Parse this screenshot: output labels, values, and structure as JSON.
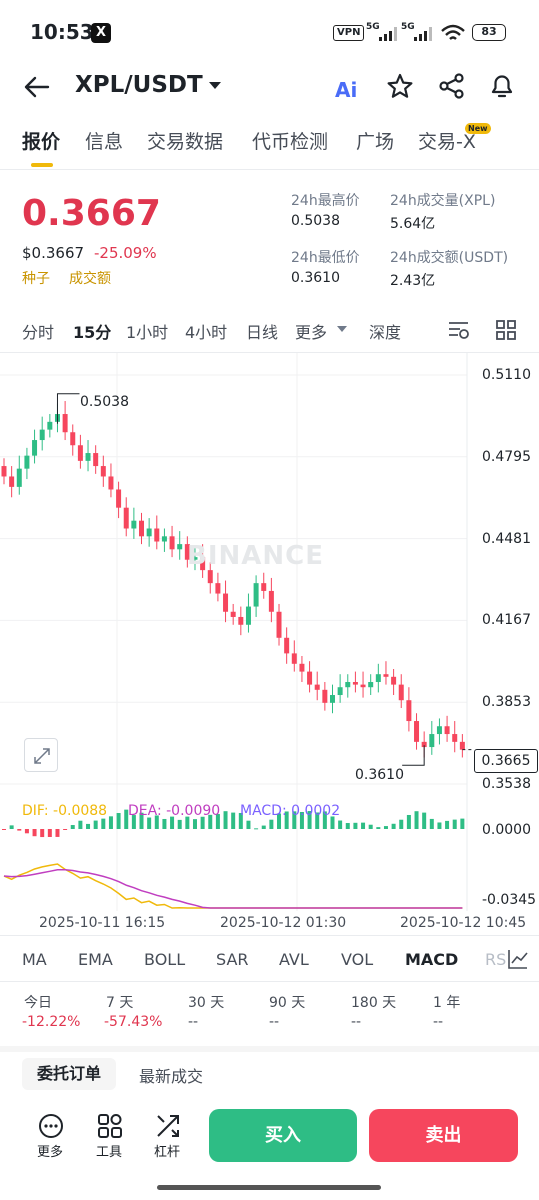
{
  "status_bar": {
    "time": "10:53",
    "x_badge": "X",
    "vpn": "VPN",
    "net1": "5G",
    "net2": "5G",
    "battery": "83"
  },
  "header": {
    "pair": "XPL/USDT",
    "ai_label": "Ai"
  },
  "tabs": [
    "报价",
    "信息",
    "交易数据",
    "代币检测",
    "广场",
    "交易-X"
  ],
  "new_badge": "New",
  "price": {
    "last": "0.3667",
    "usd": "$0.3667",
    "change": "-25.09%",
    "tag1": "种子",
    "tag2": "成交额"
  },
  "stats": {
    "high_label": "24h最高价",
    "high_value": "0.5038",
    "vol_label": "24h成交量(XPL)",
    "vol_value": "5.64亿",
    "low_label": "24h最低价",
    "low_value": "0.3610",
    "amt_label": "24h成交额(USDT)",
    "amt_value": "2.43亿"
  },
  "intervals": [
    "分时",
    "15分",
    "1小时",
    "4小时",
    "日线",
    "更多",
    "深度"
  ],
  "chart": {
    "price_axis": [
      "0.5110",
      "0.4795",
      "0.4481",
      "0.4167",
      "0.3853",
      "0.3538"
    ],
    "high_mark": "0.5038",
    "low_mark": "0.3610",
    "current_price": "0.3665",
    "watermark": "BINANCE",
    "macd_axis": [
      "0.0000",
      "-0.0345"
    ],
    "time_axis": [
      "2025-10-11 16:15",
      "2025-10-12 01:30",
      "2025-10-12 10:45"
    ],
    "dif_label": "DIF: -0.0088",
    "dea_label": "DEA: -0.0090",
    "macd_label": "MACD: 0.0002",
    "colors": {
      "up": "#2ebd85",
      "down": "#f6465d",
      "dif": "#f0b90b",
      "dea": "#c03ec0",
      "macd_text": "#7b61ff"
    }
  },
  "chart_data": {
    "type": "candlestick",
    "close_series": [
      0.472,
      0.468,
      0.475,
      0.48,
      0.486,
      0.49,
      0.493,
      0.496,
      0.489,
      0.484,
      0.478,
      0.481,
      0.476,
      0.472,
      0.467,
      0.46,
      0.452,
      0.455,
      0.449,
      0.452,
      0.447,
      0.449,
      0.444,
      0.446,
      0.44,
      0.441,
      0.436,
      0.431,
      0.427,
      0.42,
      0.418,
      0.415,
      0.422,
      0.431,
      0.428,
      0.42,
      0.41,
      0.404,
      0.4,
      0.397,
      0.392,
      0.39,
      0.385,
      0.388,
      0.391,
      0.393,
      0.392,
      0.391,
      0.393,
      0.396,
      0.395,
      0.392,
      0.386,
      0.378,
      0.37,
      0.368,
      0.373,
      0.376,
      0.373,
      0.37,
      0.367
    ],
    "ylim": [
      0.3538,
      0.511
    ],
    "high": 0.5038,
    "low": 0.361
  },
  "indicators": [
    "MA",
    "EMA",
    "BOLL",
    "SAR",
    "AVL",
    "VOL",
    "MACD",
    "RSI"
  ],
  "periods": [
    {
      "label": "今日",
      "value": "-12.22%",
      "neg": true
    },
    {
      "label": "7 天",
      "value": "-57.43%",
      "neg": true
    },
    {
      "label": "30 天",
      "value": "--",
      "neg": false
    },
    {
      "label": "90 天",
      "value": "--",
      "neg": false
    },
    {
      "label": "180 天",
      "value": "--",
      "neg": false
    },
    {
      "label": "1 年",
      "value": "--",
      "neg": false
    }
  ],
  "order_tabs": {
    "orders": "委托订单",
    "trades": "最新成交"
  },
  "bottom": {
    "more": "更多",
    "tools": "工具",
    "leverage": "杠杆",
    "buy": "买入",
    "sell": "卖出"
  }
}
